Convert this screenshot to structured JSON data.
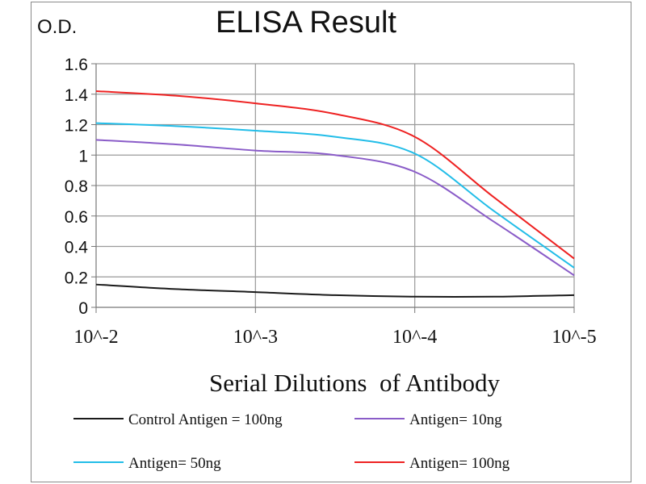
{
  "chart_data": {
    "type": "line",
    "title": "ELISA Result",
    "ylabel": "O.D.",
    "xlabel": "Serial Dilutions  of Antibody",
    "x_tick_labels": [
      "10^-2",
      "10^-3",
      "10^-4",
      "10^-5"
    ],
    "y_tick_labels": [
      "0",
      "0.2",
      "0.4",
      "0.6",
      "0.8",
      "1",
      "1.2",
      "1.4",
      "1.6"
    ],
    "ylim": [
      0,
      1.6
    ],
    "x": [
      0,
      0.5,
      1,
      1.5,
      2,
      2.5,
      3
    ],
    "grid": true,
    "legend_position": "bottom",
    "series": [
      {
        "name": "Control Antigen = 100ng",
        "color": "#1a1a1a",
        "values": [
          0.15,
          0.12,
          0.1,
          0.08,
          0.07,
          0.07,
          0.08
        ]
      },
      {
        "name": "Antigen= 10ng",
        "color": "#8a5cc8",
        "values": [
          1.1,
          1.07,
          1.03,
          1.0,
          0.89,
          0.56,
          0.21
        ]
      },
      {
        "name": "Antigen= 50ng",
        "color": "#22bde8",
        "values": [
          1.21,
          1.19,
          1.16,
          1.12,
          1.01,
          0.63,
          0.26
        ]
      },
      {
        "name": "Antigen= 100ng",
        "color": "#ee2222",
        "values": [
          1.42,
          1.39,
          1.34,
          1.27,
          1.12,
          0.72,
          0.32
        ]
      }
    ]
  }
}
